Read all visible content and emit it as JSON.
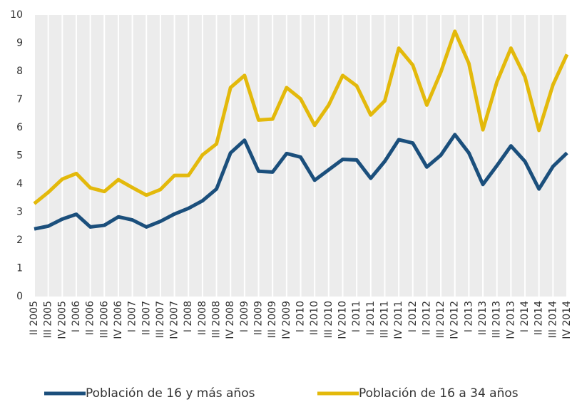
{
  "chart_data": {
    "type": "line",
    "categories": [
      "II 2005",
      "III 2005",
      "IV 2005",
      "I 2006",
      "II 2006",
      "III 2006",
      "IV 2006",
      "I 2007",
      "II 2007",
      "III 2007",
      "IV 2007",
      "I 2008",
      "II 2008",
      "III 2008",
      "IV 2008",
      "I 2009",
      "II 2009",
      "III 2009",
      "IV 2009",
      "I 2010",
      "II 2010",
      "III 2010",
      "IV 2010",
      "I 2011",
      "II 2011",
      "III 2011",
      "IV 2011",
      "I 2012",
      "II 2012",
      "III 2012",
      "IV 2012",
      "I 2013",
      "II 2013",
      "III 2013",
      "IV 2013",
      "I 2014",
      "II 2014",
      "III 2014",
      "IV 2014"
    ],
    "series": [
      {
        "name": "Población de 16 y más años",
        "color": "#1b4f7c",
        "values": [
          2.4,
          2.5,
          2.75,
          2.92,
          2.47,
          2.53,
          2.83,
          2.72,
          2.47,
          2.67,
          2.93,
          3.13,
          3.4,
          3.82,
          5.1,
          5.55,
          4.45,
          4.42,
          5.08,
          4.95,
          4.13,
          4.5,
          4.87,
          4.85,
          4.2,
          4.8,
          5.57,
          5.45,
          4.6,
          5.02,
          5.75,
          5.1,
          3.98,
          4.65,
          5.35,
          4.8,
          3.82,
          4.62,
          5.1
        ]
      },
      {
        "name": "Población de 16 a 34 años",
        "color": "#e3b90b",
        "values": [
          3.3,
          3.7,
          4.17,
          4.37,
          3.86,
          3.73,
          4.15,
          3.87,
          3.6,
          3.8,
          4.3,
          4.3,
          5.03,
          5.42,
          7.42,
          7.85,
          6.27,
          6.3,
          7.42,
          7.02,
          6.08,
          6.8,
          7.85,
          7.48,
          6.45,
          6.95,
          8.82,
          8.22,
          6.8,
          7.97,
          9.42,
          8.28,
          5.92,
          7.62,
          8.82,
          7.8,
          5.9,
          7.52,
          8.6
        ]
      }
    ],
    "ylim": [
      0,
      10
    ],
    "yticks": [
      0,
      1,
      2,
      3,
      4,
      5,
      6,
      7,
      8,
      9,
      10
    ],
    "grid": true,
    "legend": "bottom"
  }
}
